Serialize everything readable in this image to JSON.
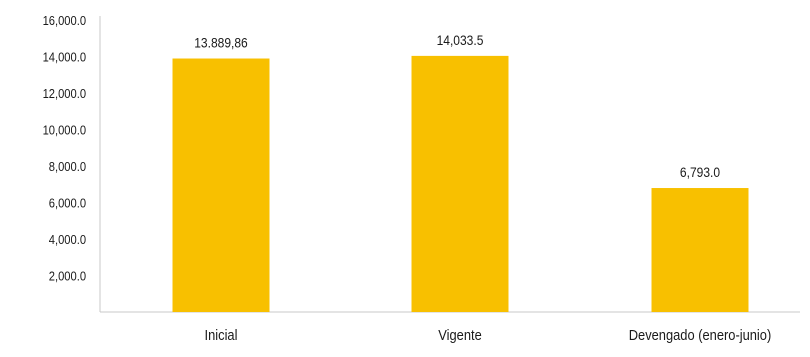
{
  "chart_data": {
    "type": "bar",
    "categories": [
      "Inicial",
      "Vigente",
      "Devengado (enero-junio)"
    ],
    "values": [
      13889.86,
      14033.5,
      6793.0
    ],
    "value_labels": [
      "13.889,86",
      "14,033.5",
      "6,793.0"
    ],
    "title": "",
    "xlabel": "",
    "ylabel": "",
    "ylim": [
      0,
      16000
    ],
    "y_ticks": [
      2000,
      4000,
      6000,
      8000,
      10000,
      12000,
      14000,
      16000
    ],
    "y_tick_labels": [
      "2,000.0",
      "4,000.0",
      "6,000.0",
      "8,000.0",
      "10,000.0",
      "12,000.0",
      "14,000.0",
      "16,000.0"
    ],
    "grid": false,
    "legend": "none",
    "colors": {
      "bar": "#F8C000",
      "axis": "#c8c8c8",
      "text": "#1a1a1a"
    }
  }
}
